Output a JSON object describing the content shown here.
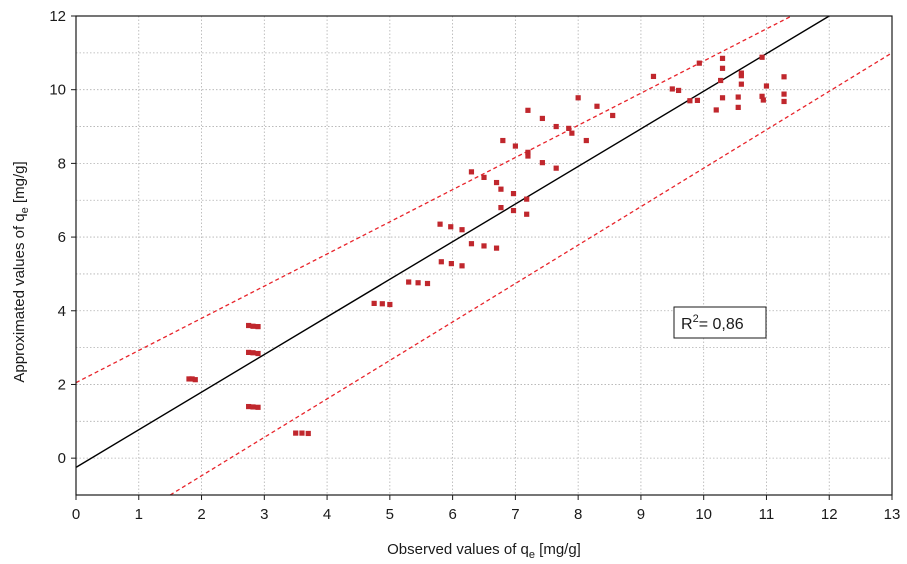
{
  "chart_data": {
    "type": "scatter",
    "xlabel": {
      "main": "Observed values of q",
      "sub": "e",
      "unit": " [mg/g]"
    },
    "ylabel": {
      "main": "Approximated values of q",
      "sub": "e",
      "unit": " [mg/g]"
    },
    "xlim": [
      0,
      13
    ],
    "ylim": [
      -1,
      12
    ],
    "xticks": [
      0,
      1,
      2,
      3,
      4,
      5,
      6,
      7,
      8,
      9,
      10,
      11,
      12,
      13
    ],
    "yticks": [
      0,
      2,
      4,
      6,
      8,
      10,
      12
    ],
    "grid": true,
    "annotation": {
      "prefix": "R",
      "sup": "2",
      "suffix": "= 0,86"
    },
    "colors": {
      "points": "#c0272d",
      "fit_line": "#000000",
      "bands": "#e8232a",
      "grid": "#b0b0b0"
    },
    "fit_line": {
      "start": [
        0,
        -0.25
      ],
      "end": [
        12,
        12
      ]
    },
    "upper_band": {
      "start": [
        0,
        2.05
      ],
      "end": [
        11.4,
        12
      ]
    },
    "lower_band": {
      "start": [
        1.5,
        -1
      ],
      "end": [
        13,
        11
      ]
    },
    "points": [
      [
        1.8,
        2.15
      ],
      [
        1.85,
        2.15
      ],
      [
        1.9,
        2.13
      ],
      [
        2.75,
        3.6
      ],
      [
        2.82,
        3.58
      ],
      [
        2.9,
        3.57
      ],
      [
        2.75,
        2.87
      ],
      [
        2.82,
        2.86
      ],
      [
        2.9,
        2.84
      ],
      [
        2.75,
        1.4
      ],
      [
        2.82,
        1.39
      ],
      [
        2.9,
        1.38
      ],
      [
        3.5,
        0.68
      ],
      [
        3.6,
        0.68
      ],
      [
        3.7,
        0.67
      ],
      [
        4.75,
        4.2
      ],
      [
        4.88,
        4.19
      ],
      [
        5.0,
        4.17
      ],
      [
        5.3,
        4.78
      ],
      [
        5.45,
        4.76
      ],
      [
        5.6,
        4.74
      ],
      [
        5.8,
        6.35
      ],
      [
        5.97,
        6.28
      ],
      [
        6.15,
        6.2
      ],
      [
        5.82,
        5.33
      ],
      [
        5.98,
        5.28
      ],
      [
        6.15,
        5.22
      ],
      [
        6.3,
        7.77
      ],
      [
        6.5,
        7.62
      ],
      [
        6.7,
        7.48
      ],
      [
        6.3,
        5.82
      ],
      [
        6.5,
        5.76
      ],
      [
        6.7,
        5.7
      ],
      [
        6.77,
        7.3
      ],
      [
        6.97,
        7.18
      ],
      [
        7.18,
        7.03
      ],
      [
        6.77,
        6.8
      ],
      [
        6.97,
        6.72
      ],
      [
        7.18,
        6.62
      ],
      [
        6.8,
        8.62
      ],
      [
        7.0,
        8.47
      ],
      [
        7.2,
        8.3
      ],
      [
        7.2,
        9.44
      ],
      [
        7.43,
        9.22
      ],
      [
        7.65,
        9.0
      ],
      [
        7.2,
        8.2
      ],
      [
        7.43,
        8.02
      ],
      [
        7.65,
        7.87
      ],
      [
        8.0,
        9.78
      ],
      [
        8.3,
        9.55
      ],
      [
        8.55,
        9.3
      ],
      [
        7.85,
        8.95
      ],
      [
        7.9,
        8.82
      ],
      [
        8.13,
        8.62
      ],
      [
        9.2,
        10.36
      ],
      [
        9.5,
        10.02
      ],
      [
        9.6,
        9.98
      ],
      [
        9.78,
        9.7
      ],
      [
        9.9,
        9.71
      ],
      [
        9.93,
        10.72
      ],
      [
        10.2,
        9.45
      ],
      [
        10.27,
        10.25
      ],
      [
        10.3,
        10.85
      ],
      [
        10.3,
        10.58
      ],
      [
        10.3,
        9.78
      ],
      [
        10.55,
        9.8
      ],
      [
        10.55,
        9.52
      ],
      [
        10.6,
        10.45
      ],
      [
        10.6,
        10.38
      ],
      [
        10.6,
        10.15
      ],
      [
        10.93,
        10.88
      ],
      [
        10.93,
        9.82
      ],
      [
        10.95,
        9.72
      ],
      [
        11.0,
        10.1
      ],
      [
        11.28,
        10.35
      ],
      [
        11.28,
        9.88
      ],
      [
        11.28,
        9.68
      ]
    ]
  }
}
